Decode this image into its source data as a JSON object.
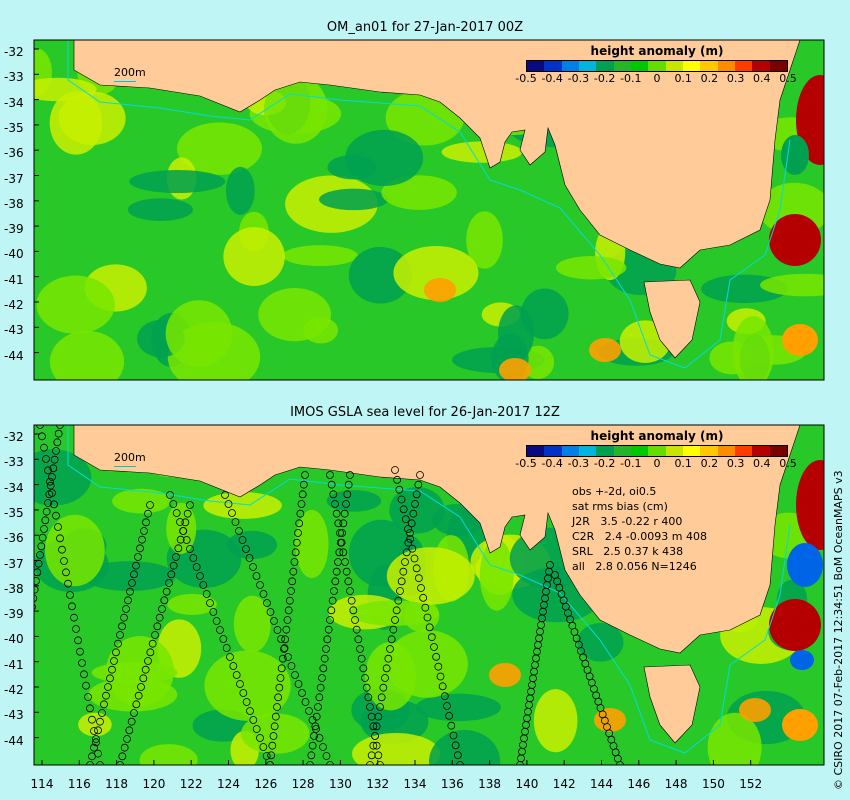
{
  "top_panel": {
    "title": "OM_an01 for 27-Jan-2017 00Z",
    "scale_label": "200m"
  },
  "bottom_panel": {
    "title": "IMOS GSLA sea level  for 26-Jan-2017 12Z",
    "scale_label": "200m",
    "stats": [
      "obs +-2d, oi0.5",
      "sat rms bias (cm)",
      "J2R   3.5 -0.22 r 400",
      "C2R   2.4 -0.0093 m 408",
      "SRL   2.5 0.37 k 438",
      "all   2.8 0.056 N=1246"
    ]
  },
  "colorbar": {
    "title": "height anomaly (m)",
    "ticks": [
      "-0.5",
      "-0.4",
      "-0.3",
      "-0.2",
      "-0.1",
      "0",
      "0.1",
      "0.2",
      "0.3",
      "0.4",
      "0.5"
    ],
    "colors": [
      "#0a0a80",
      "#0032c8",
      "#0080e6",
      "#00b4dc",
      "#00a050",
      "#28b428",
      "#00c800",
      "#64dc00",
      "#c8e600",
      "#ffff00",
      "#ffc800",
      "#ff8c00",
      "#ff3c00",
      "#b40000",
      "#780000"
    ]
  },
  "lat_labels": [
    "-32",
    "-33",
    "-34",
    "-35",
    "-36",
    "-37",
    "-38",
    "-39",
    "-40",
    "-41",
    "-42",
    "-43",
    "-44"
  ],
  "lon_labels": [
    "114",
    "116",
    "118",
    "120",
    "122",
    "124",
    "126",
    "128",
    "130",
    "132",
    "134",
    "136",
    "138",
    "140",
    "142",
    "144",
    "146",
    "148",
    "150",
    "152"
  ],
  "credit": "© CSIRO 2017  07-Feb-2017 12:34:51 BoM OceanMAPS v3",
  "map_colors": {
    "land": "#ffcc99",
    "page": "#c0f5f5",
    "ocean_base": "#28c828",
    "ocean_light": "#78e600",
    "ocean_dark": "#00a050",
    "ocean_yellow": "#c8f000",
    "warm": "#ffa000",
    "hot": "#b40000",
    "cold": "#0064e6",
    "isobath": "#00dcdc"
  }
}
